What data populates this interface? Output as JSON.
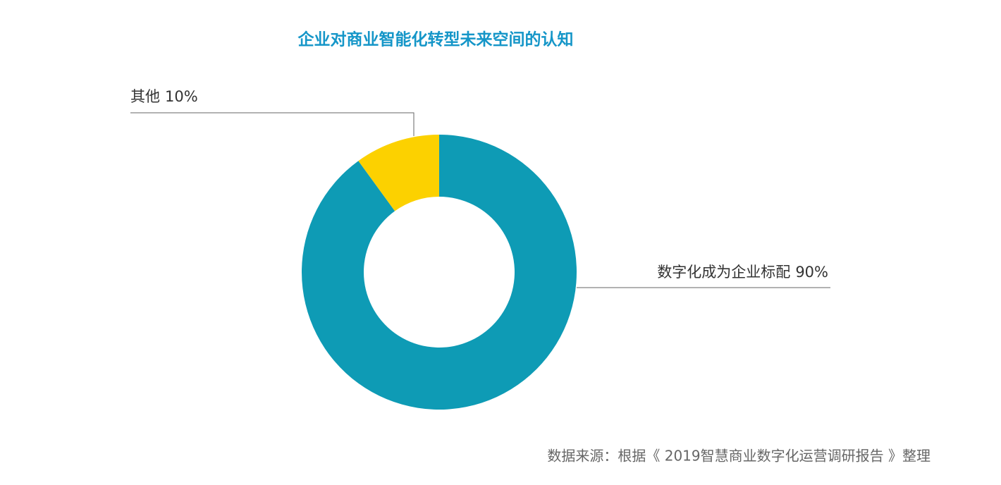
{
  "chart_data": {
    "type": "donut",
    "title": "企业对商业智能化转型未来空间的认知",
    "categories": [
      "数字化成为企业标配",
      "其他"
    ],
    "values": [
      90,
      10
    ],
    "value_labels": [
      "90%",
      "10%"
    ],
    "colors": [
      "#0e9bb5",
      "#fcd100"
    ],
    "source": "数据来源：根据《 2019智慧商业数字化运营调研报告 》整理"
  }
}
